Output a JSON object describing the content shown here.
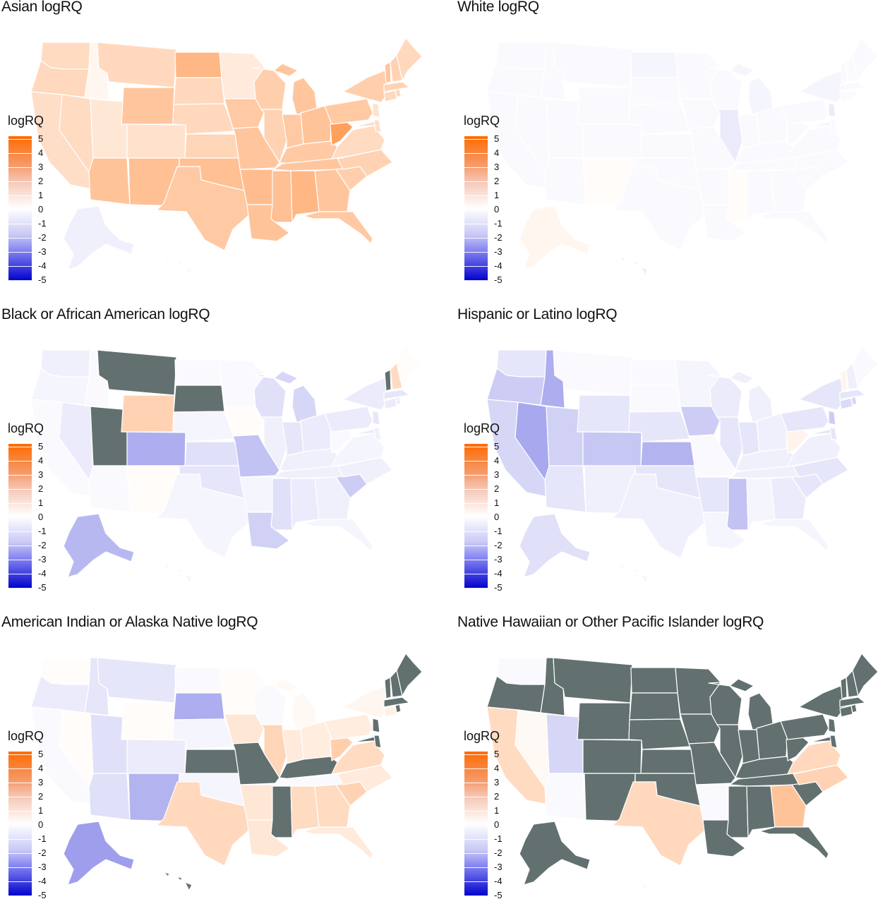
{
  "legend": {
    "title": "logRQ",
    "labels": [
      "5",
      "4",
      "3",
      "2",
      "1",
      "0",
      "-1",
      "-2",
      "-3",
      "-4",
      "-5"
    ],
    "scale": {
      "min": -5,
      "max": 5,
      "high_color": "#ff6a00",
      "mid_color": "#ffffff",
      "low_color": "#0000cc",
      "na_color": "#627070"
    }
  },
  "panels": [
    {
      "title": "Asian logRQ"
    },
    {
      "title": "White logRQ"
    },
    {
      "title": "Black or African American logRQ"
    },
    {
      "title": "Hispanic or Latino logRQ"
    },
    {
      "title": "American Indian or Alaska Native logRQ"
    },
    {
      "title": "Native Hawaiian or Other Pacific Islander logRQ"
    }
  ],
  "map_values": {
    "Asian": {
      "WA": 1.2,
      "OR": 1.3,
      "CA": 1.1,
      "NV": 1.2,
      "ID": 0.3,
      "MT": 1.3,
      "WY": 1.9,
      "UT": 0.8,
      "AZ": 2.0,
      "CO": 1.0,
      "NM": 2.1,
      "ND": 2.4,
      "SD": 1.3,
      "NE": 1.3,
      "KS": 1.4,
      "OK": 2.1,
      "TX": 1.8,
      "MN": 0.7,
      "IA": 1.8,
      "MO": 1.9,
      "AR": 2.2,
      "LA": 2.0,
      "WI": 1.6,
      "IL": 1.5,
      "MS": 2.1,
      "MI": 1.9,
      "IN": 1.8,
      "OH": 2.0,
      "KY": 1.8,
      "TN": 1.9,
      "AL": 2.4,
      "WV": 3.2,
      "PA": 1.8,
      "GA": 1.9,
      "FL": 1.8,
      "SC": 1.6,
      "NC": 1.5,
      "VA": 1.2,
      "MD": 1.1,
      "DE": 1.1,
      "NJ": 1.0,
      "NY": 1.6,
      "CT": 1.3,
      "RI": 1.3,
      "MA": 1.5,
      "VT": 1.9,
      "NH": 1.5,
      "ME": 1.3,
      "AK": -0.3,
      "HI": 0.3
    },
    "White": {
      "WA": -0.1,
      "OR": -0.1,
      "CA": -0.1,
      "NV": -0.1,
      "ID": -0.1,
      "MT": -0.1,
      "WY": -0.1,
      "UT": -0.1,
      "AZ": -0.1,
      "CO": -0.1,
      "NM": 0.1,
      "ND": -0.2,
      "SD": -0.1,
      "NE": -0.1,
      "KS": -0.1,
      "OK": -0.1,
      "TX": -0.1,
      "MN": -0.1,
      "IA": -0.1,
      "MO": -0.1,
      "AR": -0.1,
      "LA": -0.1,
      "WI": -0.1,
      "IL": -0.4,
      "MS": 0.1,
      "MI": -0.2,
      "IN": -0.1,
      "OH": -0.1,
      "KY": -0.1,
      "TN": -0.1,
      "AL": -0.1,
      "WV": -0.1,
      "PA": -0.1,
      "GA": -0.1,
      "FL": -0.1,
      "SC": -0.1,
      "NC": -0.1,
      "VA": -0.1,
      "MD": -0.2,
      "DE": -0.1,
      "NJ": -0.4,
      "NY": -0.2,
      "CT": -0.1,
      "RI": -0.1,
      "MA": -0.1,
      "VT": -0.1,
      "NH": -0.1,
      "ME": -0.1,
      "AK": 0.3,
      "HI": 0.6
    },
    "Black": {
      "WA": -0.3,
      "OR": -0.2,
      "CA": -0.1,
      "NV": -0.4,
      "ID": -0.1,
      "MT": null,
      "WY": 1.5,
      "UT": null,
      "AZ": -0.1,
      "CO": -1.6,
      "NM": 0.1,
      "ND": -0.1,
      "SD": null,
      "NE": -0.2,
      "KS": -0.6,
      "OK": -0.5,
      "TX": -0.2,
      "MN": -0.1,
      "IA": 0.1,
      "MO": -1.2,
      "AR": -0.2,
      "LA": -0.9,
      "WI": -0.6,
      "IL": -0.3,
      "MS": -0.6,
      "MI": -0.8,
      "IN": -0.5,
      "OH": -0.4,
      "KY": -0.3,
      "TN": -0.3,
      "AL": -0.4,
      "WV": -0.1,
      "PA": -0.4,
      "GA": -0.3,
      "FL": -0.2,
      "SC": -1.0,
      "NC": -0.3,
      "VA": -0.2,
      "MD": -0.4,
      "DE": -0.3,
      "NJ": -0.5,
      "NY": -0.4,
      "CT": -0.4,
      "RI": -0.3,
      "MA": -0.5,
      "VT": null,
      "NH": 1.2,
      "ME": 0.1,
      "AK": -1.4,
      "HI": 0.4
    },
    "Hispanic": {
      "WA": -0.5,
      "OR": -1.0,
      "CA": -0.8,
      "NV": -1.7,
      "ID": -1.6,
      "MT": -0.1,
      "WY": -0.5,
      "UT": -0.9,
      "AZ": -0.5,
      "CO": -1.1,
      "NM": -0.3,
      "ND": -0.1,
      "SD": -0.1,
      "NE": -0.5,
      "KS": -1.5,
      "OK": -0.5,
      "TX": -0.3,
      "MN": -0.2,
      "IA": -1.0,
      "MO": -0.1,
      "AR": -0.5,
      "LA": -0.2,
      "WI": -0.4,
      "IL": -0.5,
      "MS": -1.2,
      "MI": -0.3,
      "IN": -0.5,
      "OH": -0.3,
      "KY": -0.3,
      "TN": -0.3,
      "AL": -0.2,
      "WV": 0.4,
      "PA": -0.5,
      "GA": -0.4,
      "FL": -0.2,
      "SC": -0.5,
      "NC": -0.5,
      "VA": -0.3,
      "MD": -0.5,
      "DE": -0.5,
      "NJ": -1.0,
      "NY": -0.5,
      "CT": -0.7,
      "RI": -0.8,
      "MA": -0.5,
      "VT": 0.4,
      "NH": -0.3,
      "ME": -0.1,
      "AK": -0.6,
      "HI": -0.2
    },
    "AIAN": {
      "WA": 0.1,
      "OR": -0.4,
      "CA": -0.1,
      "NV": 0.1,
      "ID": -0.5,
      "MT": -0.5,
      "WY": 0.1,
      "UT": -0.6,
      "AZ": -0.6,
      "CO": -0.4,
      "NM": -1.5,
      "ND": -0.1,
      "SD": -1.6,
      "NE": -0.2,
      "KS": null,
      "OK": -0.2,
      "TX": 1.3,
      "MN": 0.1,
      "IA": 0.8,
      "MO": null,
      "AR": 0.8,
      "LA": 0.8,
      "WI": -0.1,
      "IL": 1.4,
      "MS": null,
      "MI": 0.2,
      "IN": 0.7,
      "OH": 0.6,
      "KY": null,
      "TN": -0.1,
      "AL": 1.2,
      "WV": 1.6,
      "PA": 0.6,
      "GA": 1.2,
      "FL": 0.7,
      "SC": 1.5,
      "NC": 0.7,
      "VA": 1.2,
      "MD": null,
      "DE": null,
      "NJ": null,
      "NY": 0.3,
      "CT": 0.5,
      "RI": null,
      "MA": null,
      "VT": null,
      "NH": null,
      "ME": null,
      "AK": -1.9,
      "HI": null
    },
    "NHPI": {
      "WA": -0.1,
      "OR": null,
      "CA": 1.2,
      "NV": 0.2,
      "ID": null,
      "MT": null,
      "WY": null,
      "UT": -0.8,
      "AZ": -0.1,
      "CO": null,
      "NM": null,
      "ND": null,
      "SD": null,
      "NE": null,
      "KS": null,
      "OK": null,
      "TX": 1.3,
      "MN": null,
      "IA": null,
      "MO": null,
      "AR": -0.1,
      "LA": null,
      "WI": null,
      "IL": null,
      "MS": null,
      "MI": null,
      "IN": null,
      "OH": null,
      "KY": null,
      "TN": null,
      "AL": null,
      "WV": null,
      "PA": null,
      "GA": 2.0,
      "FL": null,
      "SC": null,
      "NC": 1.5,
      "VA": 1.3,
      "MD": null,
      "DE": null,
      "NJ": null,
      "NY": null,
      "CT": null,
      "RI": null,
      "MA": null,
      "VT": null,
      "NH": null,
      "ME": null,
      "AK": null,
      "HI": -0.1
    }
  }
}
